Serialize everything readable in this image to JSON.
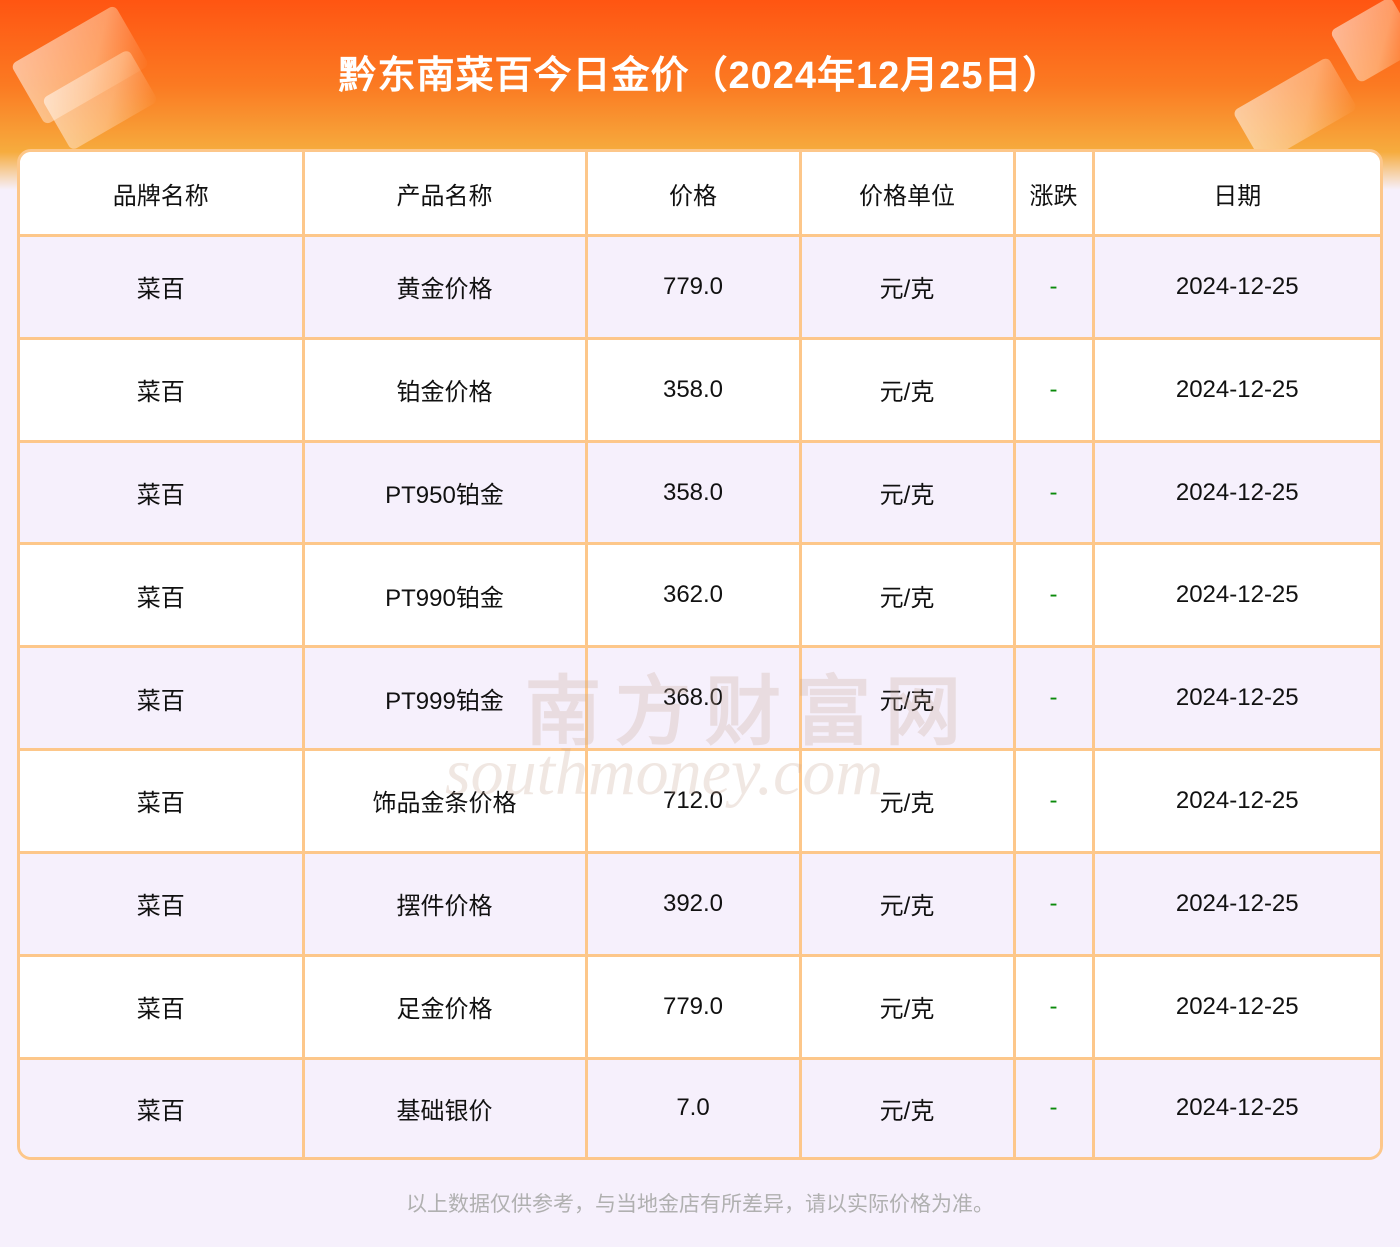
{
  "header": {
    "title": "黔东南菜百今日金价（2024年12月25日）"
  },
  "table": {
    "columns": [
      "品牌名称",
      "产品名称",
      "价格",
      "价格单位",
      "涨跌",
      "日期"
    ],
    "rows": [
      {
        "brand": "菜百",
        "product": "黄金价格",
        "price": "779.0",
        "unit": "元/克",
        "change": "-",
        "date": "2024-12-25"
      },
      {
        "brand": "菜百",
        "product": "铂金价格",
        "price": "358.0",
        "unit": "元/克",
        "change": "-",
        "date": "2024-12-25"
      },
      {
        "brand": "菜百",
        "product": "PT950铂金",
        "price": "358.0",
        "unit": "元/克",
        "change": "-",
        "date": "2024-12-25"
      },
      {
        "brand": "菜百",
        "product": "PT990铂金",
        "price": "362.0",
        "unit": "元/克",
        "change": "-",
        "date": "2024-12-25"
      },
      {
        "brand": "菜百",
        "product": "PT999铂金",
        "price": "368.0",
        "unit": "元/克",
        "change": "-",
        "date": "2024-12-25"
      },
      {
        "brand": "菜百",
        "product": "饰品金条价格",
        "price": "712.0",
        "unit": "元/克",
        "change": "-",
        "date": "2024-12-25"
      },
      {
        "brand": "菜百",
        "product": "摆件价格",
        "price": "392.0",
        "unit": "元/克",
        "change": "-",
        "date": "2024-12-25"
      },
      {
        "brand": "菜百",
        "product": "足金价格",
        "price": "779.0",
        "unit": "元/克",
        "change": "-",
        "date": "2024-12-25"
      },
      {
        "brand": "菜百",
        "product": "基础银价",
        "price": "7.0",
        "unit": "元/克",
        "change": "-",
        "date": "2024-12-25"
      }
    ]
  },
  "watermark": {
    "cn": "南方财富网",
    "en": "southmoney.com"
  },
  "footer": {
    "note": "以上数据仅供参考，与当地金店有所差异，请以实际价格为准。"
  },
  "colors": {
    "border": "#fdc78a",
    "change": "#0a8a0a",
    "banner": "#ff5512",
    "background": "#f6f0fc"
  }
}
